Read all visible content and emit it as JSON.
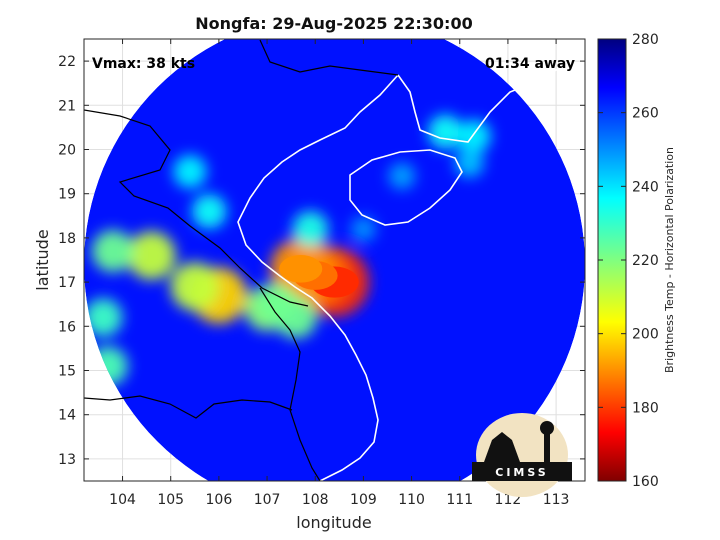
{
  "chart_data": {
    "type": "heatmap",
    "title": "Nongfa: 29-Aug-2025 22:30:00",
    "xlabel": "longitude",
    "ylabel": "latitude",
    "colorbar_label": "Brightness Temp - Horizontal Polarization",
    "xlim": [
      103.2,
      113.6
    ],
    "ylim": [
      12.5,
      22.5
    ],
    "xticks": [
      104,
      105,
      106,
      107,
      108,
      109,
      110,
      111,
      112,
      113
    ],
    "yticks": [
      13,
      14,
      15,
      16,
      17,
      18,
      19,
      20,
      21,
      22
    ],
    "clim": [
      160,
      280
    ],
    "cticks": [
      160,
      180,
      200,
      220,
      240,
      260,
      280
    ],
    "colormap": "jet",
    "grid": true,
    "annotations": {
      "vmax": "Vmax: 38 kts",
      "time_away": "01:34 away"
    },
    "swath": {
      "center": [
        108.4,
        17.4
      ],
      "radius_deg": 5.2,
      "background_value": 263
    },
    "features": [
      {
        "lon": 108.4,
        "lat": 17.0,
        "value": 180,
        "note": "core"
      },
      {
        "lon": 108.0,
        "lat": 17.15,
        "value": 188
      },
      {
        "lon": 107.7,
        "lat": 17.3,
        "value": 192
      },
      {
        "lon": 106.0,
        "lat": 16.7,
        "value": 200
      },
      {
        "lon": 105.5,
        "lat": 16.9,
        "value": 212
      },
      {
        "lon": 104.6,
        "lat": 17.6,
        "value": 212
      },
      {
        "lon": 103.8,
        "lat": 17.7,
        "value": 222
      },
      {
        "lon": 103.7,
        "lat": 15.1,
        "value": 226
      },
      {
        "lon": 103.6,
        "lat": 16.2,
        "value": 228
      },
      {
        "lon": 107.0,
        "lat": 16.4,
        "value": 218
      },
      {
        "lon": 107.6,
        "lat": 16.2,
        "value": 222
      },
      {
        "lon": 107.2,
        "lat": 16.5,
        "value": 222
      },
      {
        "lon": 107.9,
        "lat": 18.2,
        "value": 232
      },
      {
        "lon": 105.4,
        "lat": 19.5,
        "value": 236
      },
      {
        "lon": 105.8,
        "lat": 18.6,
        "value": 234
      },
      {
        "lon": 110.7,
        "lat": 20.4,
        "value": 234
      },
      {
        "lon": 111.3,
        "lat": 20.3,
        "value": 236
      },
      {
        "lon": 111.2,
        "lat": 19.7,
        "value": 242
      },
      {
        "lon": 109.8,
        "lat": 19.4,
        "value": 246
      },
      {
        "lon": 109.0,
        "lat": 18.2,
        "value": 248
      }
    ],
    "colors": {
      "land_border": "#ffffff",
      "outside": "#ffffff",
      "grid": "#e0e0e0"
    }
  },
  "logo": {
    "text": "CIMSS"
  }
}
